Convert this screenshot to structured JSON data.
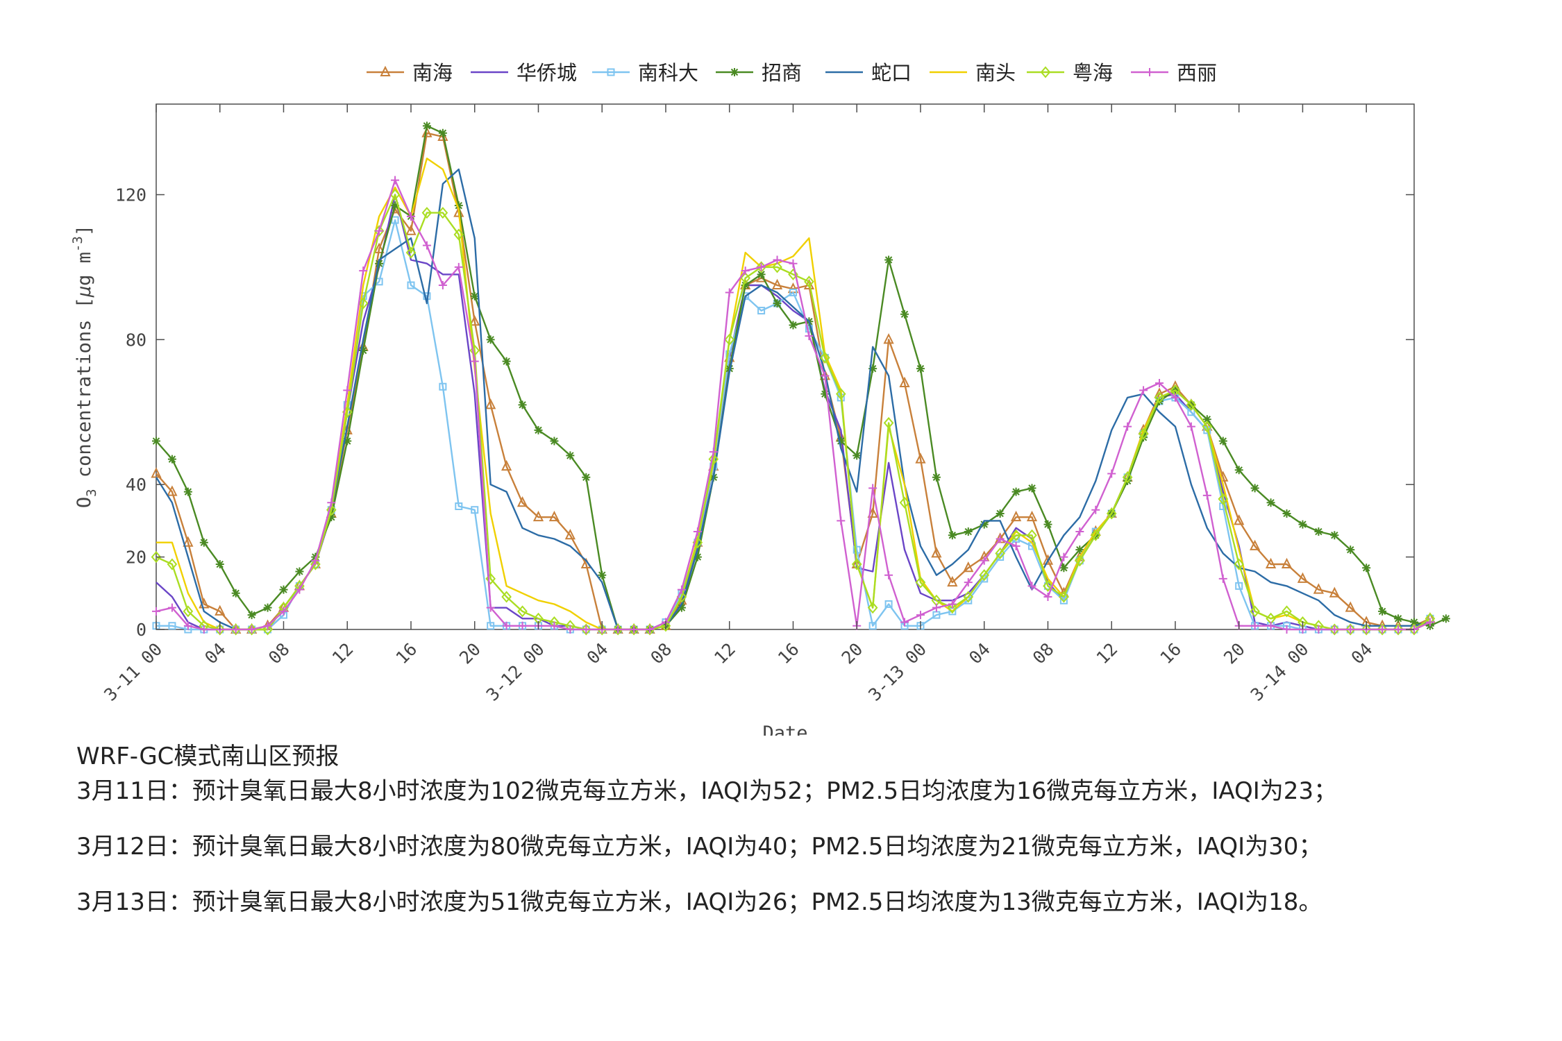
{
  "chart_data": {
    "type": "line",
    "title": "",
    "xlabel": "Date",
    "ylabel": "O",
    "ylabel_sub": "3",
    "ylabel_rest": " concentrations [",
    "ylabel_mu": "μ",
    "ylabel_unit": "g m",
    "ylabel_sup": "-3",
    "ylabel_close": "]",
    "ylim": [
      0,
      145
    ],
    "yticks": [
      0,
      20,
      40,
      80,
      120
    ],
    "xlim": [
      0,
      79
    ],
    "xticks": [
      {
        "x": 0,
        "label": "3-11 00"
      },
      {
        "x": 4,
        "label": "04"
      },
      {
        "x": 8,
        "label": "08"
      },
      {
        "x": 12,
        "label": "12"
      },
      {
        "x": 16,
        "label": "16"
      },
      {
        "x": 20,
        "label": "20"
      },
      {
        "x": 24,
        "label": "3-12 00"
      },
      {
        "x": 28,
        "label": "04"
      },
      {
        "x": 32,
        "label": "08"
      },
      {
        "x": 36,
        "label": "12"
      },
      {
        "x": 40,
        "label": "16"
      },
      {
        "x": 44,
        "label": "20"
      },
      {
        "x": 48,
        "label": "3-13 00"
      },
      {
        "x": 52,
        "label": "04"
      },
      {
        "x": 56,
        "label": "08"
      },
      {
        "x": 60,
        "label": "12"
      },
      {
        "x": 64,
        "label": "16"
      },
      {
        "x": 68,
        "label": "20"
      },
      {
        "x": 72,
        "label": "3-14 00"
      },
      {
        "x": 76,
        "label": "04"
      }
    ],
    "grid": false,
    "legend_position": "top",
    "series": [
      {
        "name": "南海",
        "color": "#c8803a",
        "marker": "triangle",
        "values": [
          43,
          38,
          24,
          7,
          5,
          0,
          0,
          1,
          6,
          12,
          18,
          32,
          55,
          78,
          105,
          116,
          110,
          137,
          136,
          115,
          85,
          62,
          45,
          35,
          31,
          31,
          26,
          18,
          0,
          0,
          0,
          0,
          1,
          8,
          24,
          45,
          75,
          95,
          97,
          95,
          94,
          95,
          70,
          53,
          18,
          32,
          80,
          68,
          47,
          21,
          13,
          17,
          20,
          25,
          31,
          31,
          19,
          10,
          20,
          27,
          32,
          42,
          55,
          65,
          67,
          62,
          56,
          42,
          30,
          23,
          18,
          18,
          14,
          11,
          10,
          6,
          2,
          1,
          1,
          1,
          3
        ]
      },
      {
        "name": "华侨城",
        "color": "#6a45c7",
        "marker": "none",
        "values": [
          13,
          9,
          2,
          0,
          0,
          0,
          0,
          0,
          4,
          12,
          18,
          32,
          60,
          85,
          100,
          120,
          102,
          101,
          98,
          98,
          65,
          6,
          6,
          3,
          3,
          1,
          1,
          0,
          0,
          0,
          0,
          0,
          1,
          7,
          23,
          45,
          75,
          95,
          95,
          92,
          88,
          85,
          66,
          55,
          17,
          16,
          46,
          22,
          10,
          8,
          8,
          10,
          15,
          21,
          28,
          25,
          13,
          8,
          20,
          27,
          32,
          42,
          55,
          64,
          65,
          60,
          55,
          38,
          23,
          2,
          1,
          2,
          1,
          0,
          0,
          0,
          0,
          0,
          0,
          0,
          2
        ]
      },
      {
        "name": "南科大",
        "color": "#7ec4f0",
        "marker": "square",
        "values": [
          1,
          1,
          0,
          0,
          0,
          0,
          0,
          0,
          4,
          12,
          18,
          33,
          62,
          92,
          96,
          113,
          95,
          92,
          67,
          34,
          33,
          1,
          1,
          1,
          1,
          1,
          0,
          0,
          0,
          0,
          0,
          0,
          2,
          10,
          24,
          45,
          76,
          92,
          88,
          90,
          93,
          83,
          75,
          64,
          22,
          1,
          7,
          1,
          1,
          4,
          5,
          8,
          14,
          20,
          25,
          23,
          12,
          8,
          19,
          27,
          32,
          42,
          54,
          63,
          64,
          60,
          55,
          34,
          12,
          1,
          1,
          1,
          0,
          0,
          0,
          0,
          0,
          0,
          0,
          0,
          3
        ]
      },
      {
        "name": "招商",
        "color": "#4a8a23",
        "marker": "star",
        "values": [
          52,
          47,
          38,
          24,
          18,
          10,
          4,
          6,
          11,
          16,
          20,
          31,
          52,
          77,
          101,
          117,
          114,
          139,
          137,
          117,
          92,
          80,
          74,
          62,
          55,
          52,
          48,
          42,
          15,
          0,
          0,
          0,
          1,
          6,
          20,
          42,
          72,
          95,
          98,
          90,
          84,
          85,
          65,
          52,
          48,
          72,
          102,
          87,
          72,
          42,
          26,
          27,
          29,
          32,
          38,
          39,
          29,
          17,
          22,
          26,
          32,
          41,
          53,
          63,
          66,
          62,
          58,
          52,
          44,
          39,
          35,
          32,
          29,
          27,
          26,
          22,
          17,
          5,
          3,
          2,
          1,
          3
        ]
      },
      {
        "name": "蛇口",
        "color": "#2c6ca6",
        "marker": "none",
        "values": [
          42,
          35,
          20,
          5,
          2,
          0,
          0,
          0,
          6,
          12,
          18,
          33,
          56,
          80,
          102,
          105,
          108,
          90,
          123,
          127,
          108,
          40,
          38,
          28,
          26,
          25,
          23,
          19,
          13,
          0,
          0,
          0,
          1,
          7,
          22,
          42,
          71,
          92,
          95,
          93,
          89,
          85,
          71,
          50,
          38,
          78,
          70,
          40,
          23,
          15,
          18,
          22,
          30,
          30,
          20,
          11,
          19,
          26,
          31,
          41,
          55,
          64,
          65,
          60,
          56,
          40,
          28,
          21,
          17,
          16,
          13,
          12,
          10,
          8,
          4,
          2,
          1,
          1,
          1,
          1,
          2
        ]
      },
      {
        "name": "南头",
        "color": "#f0d000",
        "marker": "none",
        "values": [
          24,
          24,
          10,
          2,
          0,
          0,
          0,
          0,
          6,
          12,
          18,
          33,
          62,
          95,
          114,
          122,
          114,
          130,
          127,
          116,
          72,
          32,
          12,
          10,
          8,
          7,
          5,
          2,
          0,
          0,
          0,
          0,
          1,
          9,
          25,
          46,
          80,
          104,
          100,
          101,
          103,
          108,
          76,
          66,
          18,
          6,
          56,
          40,
          14,
          8,
          5,
          9,
          15,
          21,
          27,
          24,
          14,
          9,
          20,
          27,
          32,
          42,
          55,
          64,
          66,
          62,
          56,
          40,
          22,
          5,
          3,
          4,
          2,
          1,
          0,
          0,
          0,
          0,
          0,
          0,
          2
        ]
      },
      {
        "name": "粤海",
        "color": "#aadd22",
        "marker": "diamond",
        "values": [
          20,
          18,
          5,
          1,
          0,
          0,
          0,
          0,
          6,
          12,
          18,
          33,
          60,
          90,
          110,
          120,
          104,
          115,
          115,
          109,
          77,
          14,
          9,
          5,
          3,
          2,
          1,
          0,
          0,
          0,
          0,
          0,
          1,
          9,
          24,
          47,
          80,
          97,
          100,
          100,
          98,
          96,
          75,
          65,
          18,
          6,
          57,
          35,
          13,
          8,
          6,
          9,
          15,
          21,
          26,
          26,
          12,
          9,
          19,
          26,
          32,
          42,
          54,
          64,
          66,
          62,
          56,
          36,
          18,
          5,
          3,
          5,
          2,
          1,
          0,
          0,
          0,
          0,
          0,
          0,
          3
        ]
      },
      {
        "name": "西丽",
        "color": "#d060d0",
        "marker": "plus",
        "values": [
          5,
          6,
          1,
          0,
          0,
          0,
          0,
          1,
          5,
          11,
          19,
          35,
          66,
          99,
          110,
          124,
          114,
          106,
          95,
          100,
          74,
          6,
          1,
          1,
          1,
          1,
          0,
          0,
          0,
          0,
          0,
          0,
          2,
          11,
          27,
          49,
          93,
          99,
          100,
          102,
          101,
          81,
          70,
          30,
          1,
          39,
          15,
          2,
          4,
          6,
          7,
          13,
          19,
          25,
          23,
          12,
          9,
          20,
          27,
          33,
          43,
          56,
          66,
          68,
          64,
          56,
          37,
          14,
          1,
          1,
          1,
          0,
          0,
          0,
          0,
          0,
          0,
          0,
          0,
          0,
          2
        ]
      }
    ]
  },
  "notes": {
    "title": "WRF-GC模式南山区预报",
    "lines": [
      "3月11日：预计臭氧日最大8小时浓度为102微克每立方米，IAQI为52；PM2.5日均浓度为16微克每立方米，IAQI为23；",
      "3月12日：预计臭氧日最大8小时浓度为80微克每立方米，IAQI为40；PM2.5日均浓度为21微克每立方米，IAQI为30；",
      "3月13日：预计臭氧日最大8小时浓度为51微克每立方米，IAQI为26；PM2.5日均浓度为13微克每立方米，IAQI为18。"
    ]
  }
}
